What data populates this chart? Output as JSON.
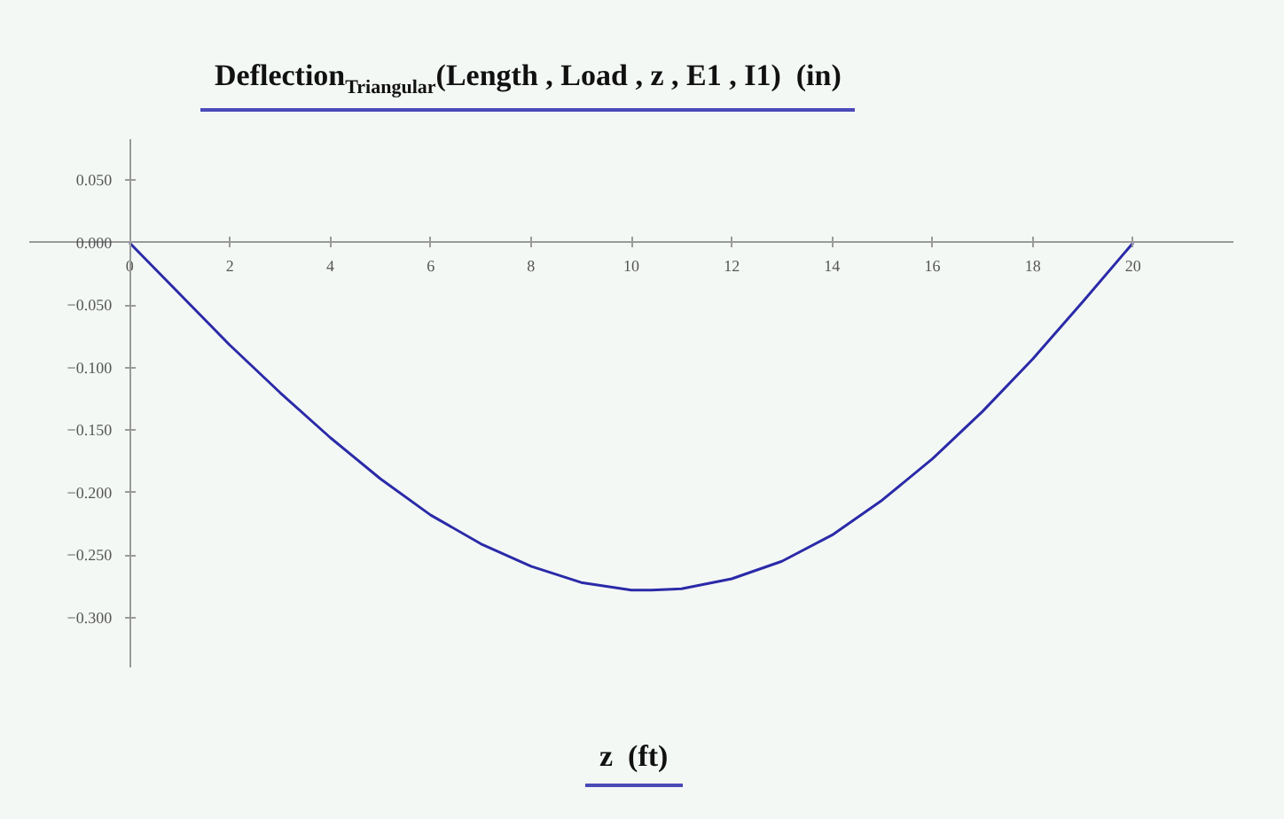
{
  "chart_data": {
    "type": "line",
    "title": "Deflection$_{Triangular}$(Length , Load , z , E1 , I1)  (in)",
    "xlabel": "z  (ft)",
    "x": [
      0,
      1,
      2,
      3,
      4,
      5,
      6,
      7,
      8,
      9,
      10,
      10.4,
      11,
      12,
      13,
      14,
      15,
      16,
      17,
      18,
      19,
      20
    ],
    "series": [
      {
        "color": "#2a2aa8",
        "values": [
          0,
          -0.041,
          -0.082,
          -0.12,
          -0.156,
          -0.189,
          -0.218,
          -0.241,
          -0.259,
          -0.272,
          -0.278,
          -0.278,
          -0.277,
          -0.269,
          -0.255,
          -0.234,
          -0.206,
          -0.173,
          -0.135,
          -0.093,
          -0.047,
          0
        ]
      }
    ],
    "xlim": [
      -2,
      22
    ],
    "ylim": [
      -0.34,
      0.083
    ],
    "xticks": [
      0,
      2,
      4,
      6,
      8,
      10,
      12,
      14,
      16,
      18,
      20
    ],
    "yticks": [
      {
        "value": -0.3,
        "label": "−0.300"
      },
      {
        "value": -0.25,
        "label": "−0.250"
      },
      {
        "value": -0.2,
        "label": "−0.200"
      },
      {
        "value": -0.15,
        "label": "−0.150"
      },
      {
        "value": -0.1,
        "label": "−0.100"
      },
      {
        "value": -0.05,
        "label": "−0.050"
      },
      {
        "value": 0,
        "label": "0.000"
      },
      {
        "value": 0.05,
        "label": "0.050"
      }
    ],
    "grid": false,
    "marker": "none",
    "line_style": "solid"
  }
}
